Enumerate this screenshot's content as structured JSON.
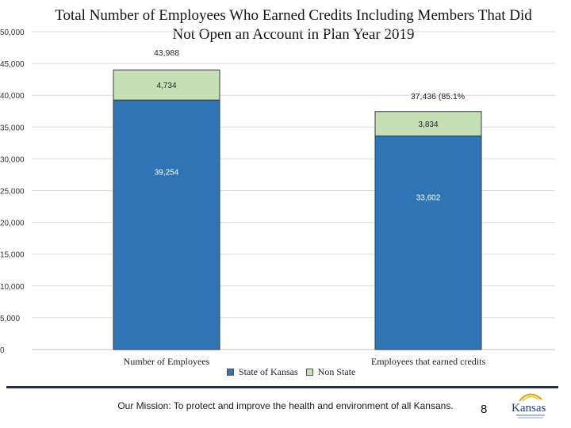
{
  "chart_data": {
    "type": "bar",
    "stacked": true,
    "title": "Total Number of Employees Who Earned Credits Including Members That Did Not Open an Account in Plan Year 2019",
    "categories": [
      "Number of Employees",
      "Employees that earned credits"
    ],
    "series": [
      {
        "name": "State of Kansas",
        "values": [
          39254,
          33602
        ],
        "labels": [
          "39,254",
          "33,602"
        ],
        "color": "#2e75b6"
      },
      {
        "name": "Non State",
        "values": [
          4734,
          3834
        ],
        "labels": [
          "4,734",
          "3,834"
        ],
        "color": "#c5e0b4"
      }
    ],
    "total_labels": [
      "43,988",
      "37,436 (85.1%"
    ],
    "ylim": [
      0,
      50000
    ],
    "yticks": [
      0,
      5000,
      10000,
      15000,
      20000,
      25000,
      30000,
      35000,
      40000,
      45000,
      50000
    ],
    "ytick_labels": [
      "0",
      "5,000",
      "10,000",
      "15,000",
      "20,000",
      "25,000",
      "30,000",
      "35,000",
      "40,000",
      "45,000",
      "50,000"
    ],
    "grid": true,
    "legend_position": "bottom"
  },
  "footer": {
    "mission": "Our Mission: To protect and improve the health and environment of all Kansans.",
    "page_number": "8",
    "logo_text": "Kansas"
  }
}
